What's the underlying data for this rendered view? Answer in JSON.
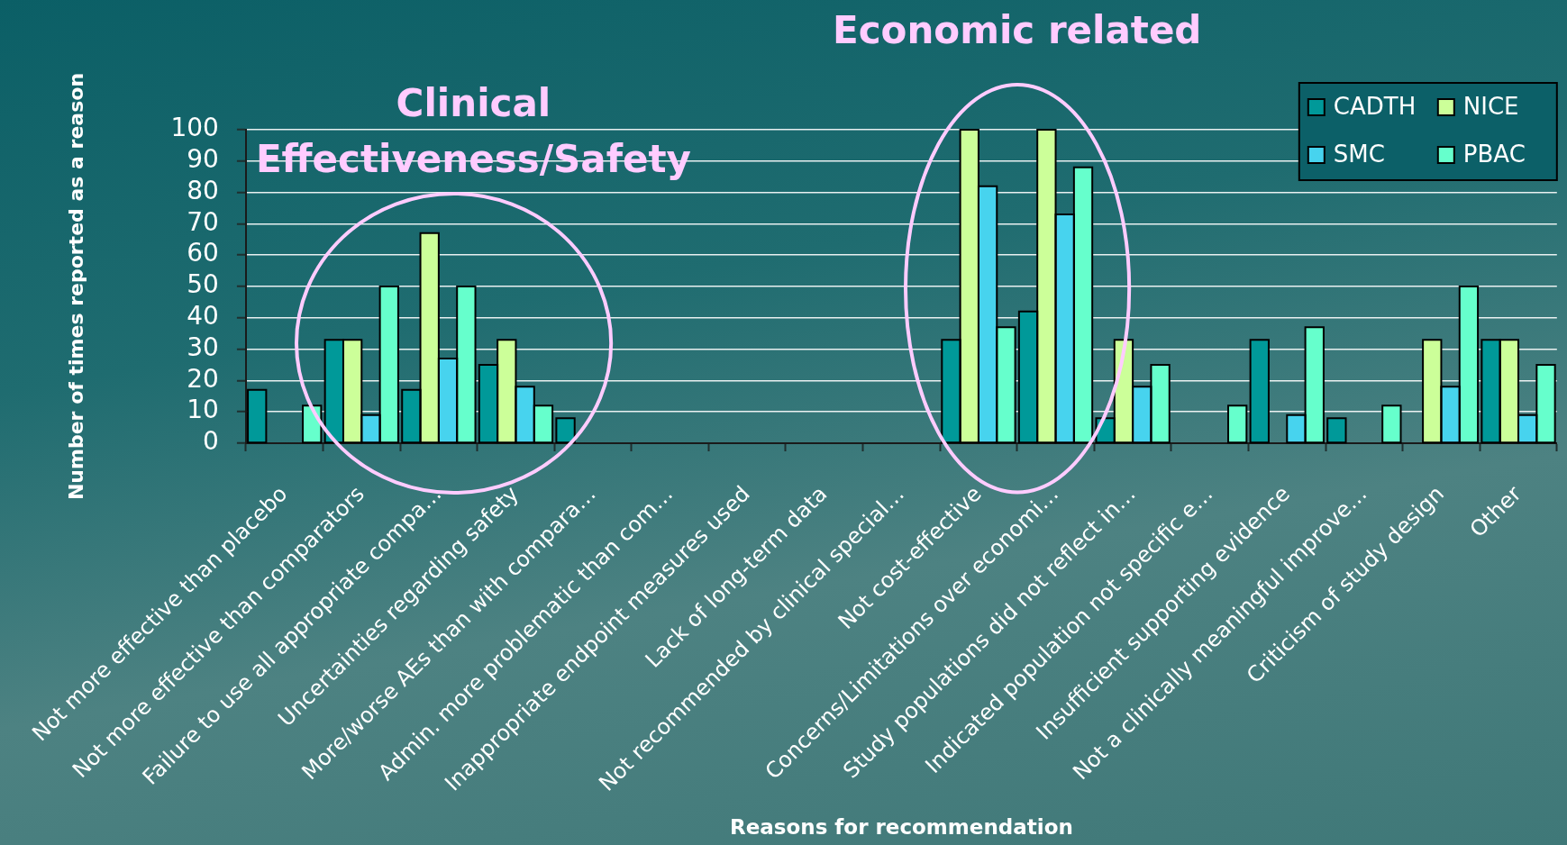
{
  "chart_data": {
    "type": "bar",
    "xlabel": "Reasons for recommendation",
    "ylabel": "Number of times reported as a reason",
    "categories": [
      "Not more effective than placebo",
      "Not more effective than comparators",
      "Failure to use all appropriate compa…",
      "Uncertainties regarding safety",
      "More/worse AEs than with compara…",
      "Admin. more problematic than com…",
      "Inappropriate endpoint measures used",
      "Lack of long-term data",
      "Not recommended by clinical special…",
      "Not cost-effective",
      "Concerns/Limitations over economi…",
      "Study populations did not reflect in…",
      "Indicated population not specific e…",
      "Insufficient supporting evidence",
      "Not a clinically meaningful improve…",
      "Criticism of study design",
      "Other"
    ],
    "series": [
      {
        "name": "CADTH",
        "color": "#009999",
        "values": [
          17,
          33,
          17,
          25,
          8,
          0,
          0,
          0,
          0,
          33,
          42,
          8,
          0,
          33,
          8,
          0,
          33
        ]
      },
      {
        "name": "NICE",
        "color": "#ccff99",
        "values": [
          0,
          33,
          67,
          33,
          0,
          0,
          0,
          0,
          0,
          100,
          100,
          33,
          0,
          0,
          0,
          33,
          33
        ]
      },
      {
        "name": "SMC",
        "color": "#47d3ee",
        "values": [
          0,
          9,
          27,
          18,
          0,
          0,
          0,
          0,
          0,
          82,
          73,
          18,
          0,
          9,
          0,
          18,
          9
        ]
      },
      {
        "name": "PBAC",
        "color": "#66ffcc",
        "values": [
          12,
          50,
          50,
          12,
          0,
          0,
          0,
          0,
          0,
          37,
          88,
          25,
          12,
          37,
          12,
          50,
          25
        ]
      }
    ],
    "ylim": [
      0,
      100
    ],
    "yticks": [
      0,
      10,
      20,
      30,
      40,
      50,
      60,
      70,
      80,
      90,
      100
    ],
    "grid": "y",
    "legend": "top right",
    "annotations": [
      "Clinical Effectiveness/Safety",
      "Economic related"
    ]
  }
}
